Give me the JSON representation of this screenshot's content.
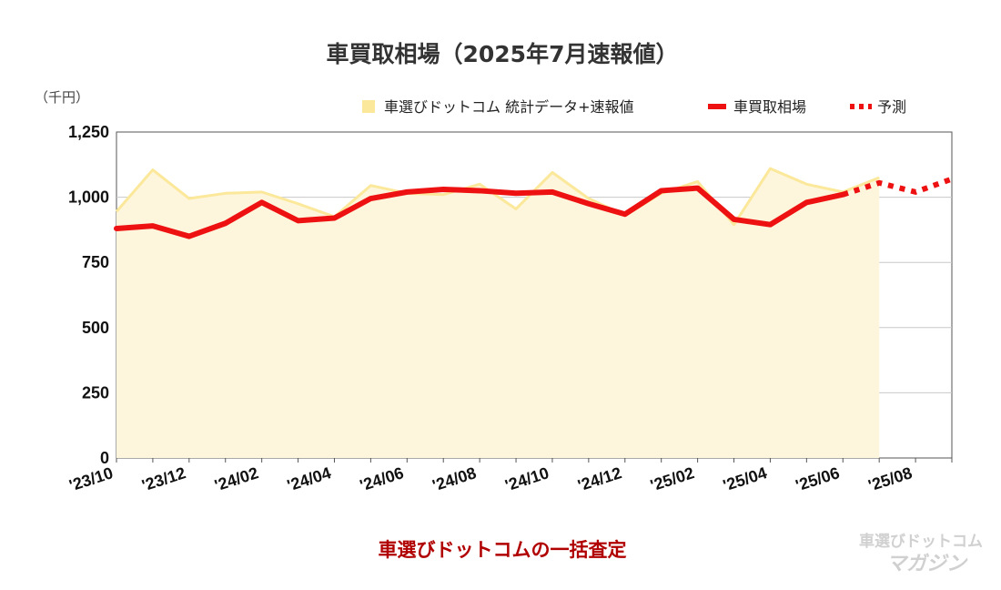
{
  "chart_data": {
    "type": "line",
    "title": "車買取相場（2025年7月速報値）",
    "unit_label": "（千円）",
    "ylim": [
      0,
      1250
    ],
    "yticks": [
      0,
      250,
      500,
      750,
      1000,
      1250
    ],
    "ytick_labels": [
      "0",
      "250",
      "500",
      "750",
      "1,000",
      "1,250"
    ],
    "x": [
      "'23/10",
      "'23/11",
      "'23/12",
      "'24/01",
      "'24/02",
      "'24/03",
      "'24/04",
      "'24/05",
      "'24/06",
      "'24/07",
      "'24/08",
      "'24/09",
      "'24/10",
      "'24/11",
      "'24/12",
      "'25/01",
      "'25/02",
      "'25/03",
      "'25/04",
      "'25/05",
      "'25/06",
      "'25/07",
      "'25/08",
      "'25/09"
    ],
    "xtick_labels": [
      "'23/10",
      "'23/12",
      "'24/02",
      "'24/04",
      "'24/06",
      "'24/08",
      "'24/10",
      "'24/12",
      "'25/02",
      "'25/04",
      "'25/06",
      "'25/08"
    ],
    "grid": true,
    "legend_position": "top-right",
    "series": [
      {
        "name": "車選びドットコム 統計データ+速報値",
        "style": "area",
        "color": "#fbe89a",
        "fill": "#fdf6dc",
        "values": [
          945,
          1105,
          995,
          1015,
          1020,
          975,
          925,
          1045,
          1015,
          1010,
          1050,
          955,
          1095,
          995,
          930,
          1015,
          1060,
          895,
          1110,
          1050,
          1020,
          1075,
          null,
          null
        ]
      },
      {
        "name": "車買取相場",
        "style": "line",
        "color": "#ee1111",
        "values": [
          880,
          890,
          850,
          900,
          980,
          910,
          920,
          995,
          1020,
          1030,
          1025,
          1015,
          1020,
          975,
          935,
          1025,
          1035,
          915,
          895,
          980,
          1010,
          null,
          null,
          null
        ]
      },
      {
        "name": "予測",
        "style": "dotted",
        "color": "#ee1111",
        "values": [
          null,
          null,
          null,
          null,
          null,
          null,
          null,
          null,
          null,
          null,
          null,
          null,
          null,
          null,
          null,
          null,
          null,
          null,
          null,
          null,
          1010,
          1055,
          1020,
          1070
        ]
      }
    ]
  },
  "source_label": "車選びドットコムの一括査定",
  "watermark": {
    "line1": "車選びドットコム",
    "line2": "マガジン"
  }
}
